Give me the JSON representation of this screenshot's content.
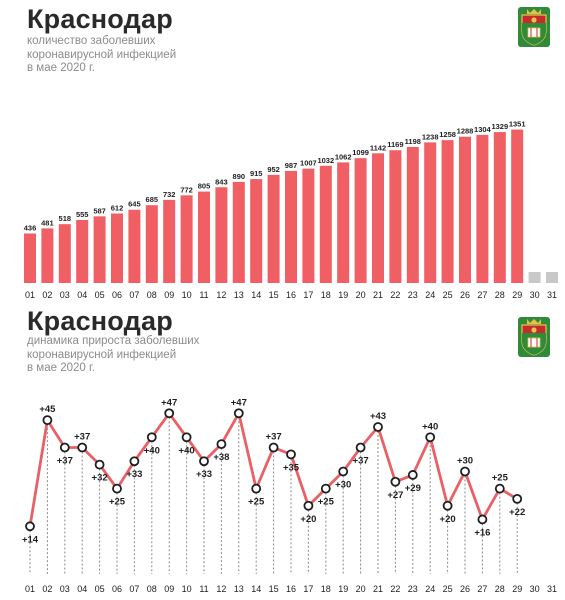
{
  "panels": [
    {
      "title": "Краснодар",
      "subtitle": "количество заболевших\nкоронавирусной инфекцией\nв мае 2020 г."
    },
    {
      "title": "Краснодар",
      "subtitle": "динамика прироста заболевших\nкоронавирусной инфекцией\nв мае 2020 г."
    }
  ],
  "colors": {
    "bar": "#ef5f63",
    "bar_missing": "#c8c8c8",
    "line": "#e96166",
    "marker_fill": "#ffffff",
    "marker_stroke": "#1e1e1e",
    "text": "#1e1e1e",
    "subtitle": "#8c8c8c",
    "dash": "#8a8a8a"
  },
  "emblem": {
    "icon": "krasnodar-coat-of-arms",
    "colors": {
      "frame": "#2f8a3a",
      "field": "#c62b2b",
      "gold": "#e7c24b",
      "white": "#ffffff"
    }
  },
  "chart_data": [
    {
      "type": "bar",
      "categories": [
        "01",
        "02",
        "03",
        "04",
        "05",
        "06",
        "07",
        "08",
        "09",
        "10",
        "11",
        "12",
        "13",
        "14",
        "15",
        "16",
        "17",
        "18",
        "19",
        "20",
        "21",
        "22",
        "23",
        "24",
        "25",
        "26",
        "27",
        "28",
        "29",
        "30",
        "31"
      ],
      "values": [
        436,
        481,
        518,
        555,
        587,
        612,
        645,
        685,
        732,
        772,
        805,
        843,
        890,
        915,
        952,
        987,
        1007,
        1032,
        1062,
        1099,
        1142,
        1169,
        1198,
        1238,
        1258,
        1288,
        1304,
        1329,
        1351,
        null,
        null
      ],
      "data_labels": [
        "436",
        "481",
        "518",
        "555",
        "587",
        "612",
        "645",
        "685",
        "732",
        "772",
        "805",
        "843",
        "890",
        "915",
        "952",
        "987",
        "1007",
        "1032",
        "1062",
        "1099",
        "1142",
        "1169",
        "1198",
        "1238",
        "1258",
        "1288",
        "1304",
        "1329",
        "1351",
        "",
        ""
      ],
      "ylim": [
        0,
        1400
      ],
      "title": "Краснодар",
      "xlabel": "",
      "ylabel": "",
      "grid": false,
      "legend": "none"
    },
    {
      "type": "line",
      "categories": [
        "01",
        "02",
        "03",
        "04",
        "05",
        "06",
        "07",
        "08",
        "09",
        "10",
        "11",
        "12",
        "13",
        "14",
        "15",
        "16",
        "17",
        "18",
        "19",
        "20",
        "21",
        "22",
        "23",
        "24",
        "25",
        "26",
        "27",
        "28",
        "29",
        "30",
        "31"
      ],
      "values": [
        14,
        45,
        37,
        37,
        32,
        25,
        33,
        40,
        47,
        40,
        33,
        38,
        47,
        25,
        37,
        35,
        20,
        25,
        30,
        37,
        43,
        27,
        29,
        40,
        20,
        30,
        16,
        25,
        22,
        null,
        null
      ],
      "data_labels": [
        "+14",
        "+45",
        "+37",
        "+37",
        "+32",
        "+25",
        "+33",
        "+40",
        "+47",
        "+40",
        "+33",
        "+38",
        "+47",
        "+25",
        "+37",
        "+35",
        "+20",
        "+25",
        "+30",
        "+37",
        "+43",
        "+27",
        "+29",
        "+40",
        "+20",
        "+30",
        "+16",
        "+25",
        "+22",
        "",
        ""
      ],
      "ylim": [
        10,
        50
      ],
      "title": "Краснодар",
      "xlabel": "",
      "ylabel": "",
      "grid": false,
      "legend": "none"
    }
  ]
}
